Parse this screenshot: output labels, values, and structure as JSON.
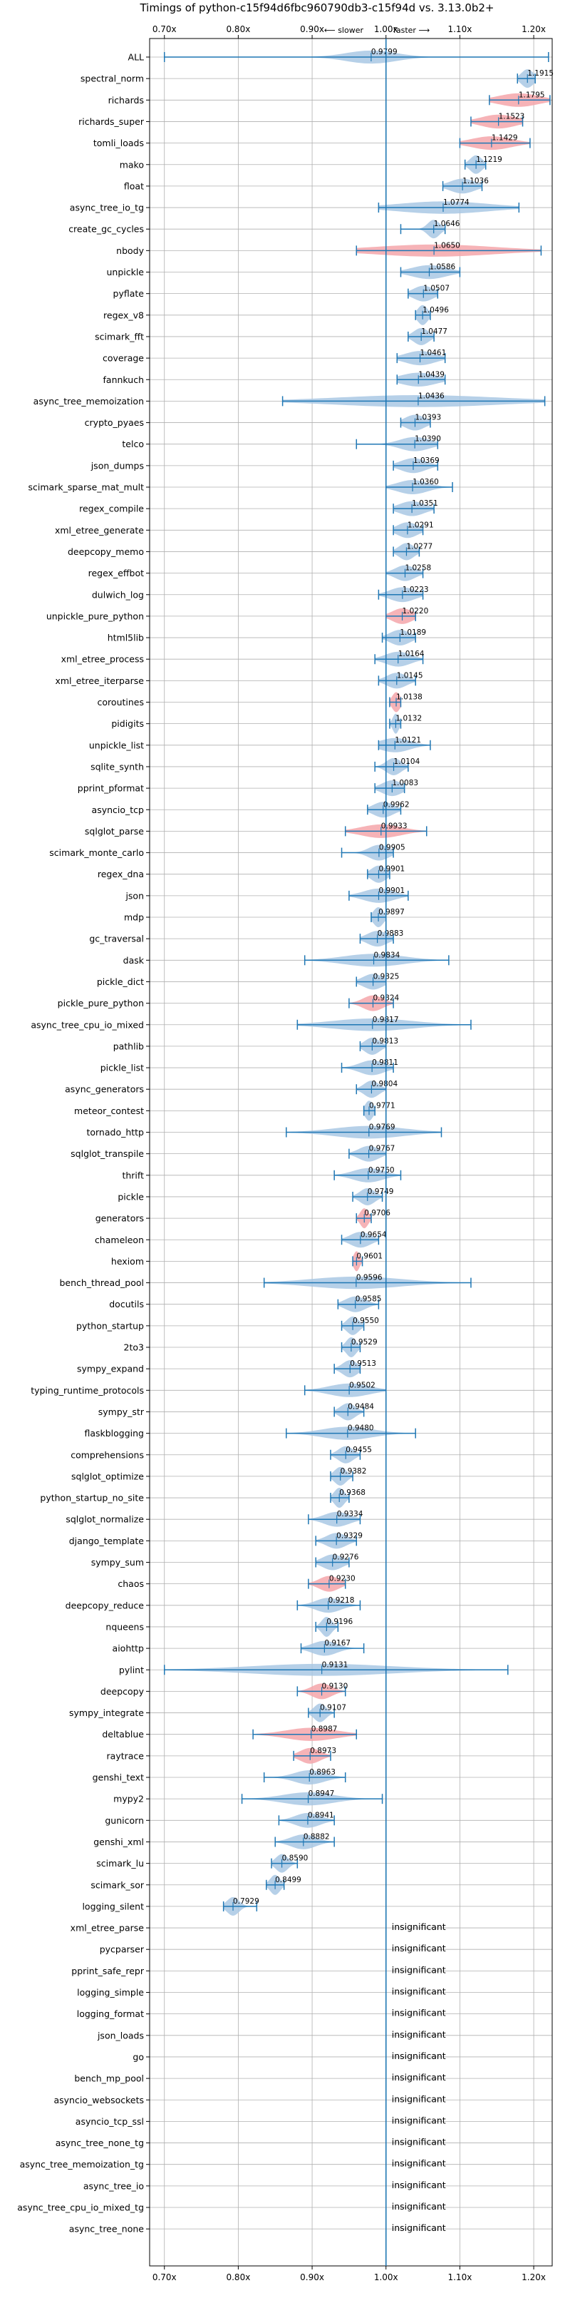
{
  "chart_data": {
    "type": "violin",
    "title": "Timings of python-c15f94d6fbc960790db3-c15f94d vs. 3.13.0b2+",
    "annotation_slower": "⟵ slower",
    "annotation_faster": "faster ⟶",
    "xlim": [
      0.68,
      1.225
    ],
    "xticks": [
      "0.70x",
      "0.80x",
      "0.90x",
      "1.00x",
      "1.10x",
      "1.20x"
    ],
    "xtick_values": [
      0.7,
      0.8,
      0.9,
      1.0,
      1.1,
      1.2
    ],
    "reference_line": 1.0,
    "grid": true,
    "insignificant_label": "insignificant",
    "colors": {
      "faster": "#a9c8e4",
      "slower": "#f5a6aa",
      "whisker": "#1f77b4",
      "ref_line": "#1f77b4",
      "grid": "#b0b0b0"
    },
    "benchmarks": [
      {
        "name": "ALL",
        "value": 0.9799,
        "label": "0.9799",
        "lo": 0.7,
        "hi": 1.22,
        "width": 0.05,
        "slower": false
      },
      {
        "name": "spectral_norm",
        "value": 1.1915,
        "label": "1.1915",
        "lo": 1.178,
        "hi": 1.202,
        "width": 0.012,
        "slower": false
      },
      {
        "name": "richards",
        "value": 1.1795,
        "label": "1.1795",
        "lo": 1.14,
        "hi": 1.222,
        "width": 0.04,
        "slower": true
      },
      {
        "name": "richards_super",
        "value": 1.1523,
        "label": "1.1523",
        "lo": 1.115,
        "hi": 1.185,
        "width": 0.035,
        "slower": true
      },
      {
        "name": "tomli_loads",
        "value": 1.1429,
        "label": "1.1429",
        "lo": 1.1,
        "hi": 1.195,
        "width": 0.04,
        "slower": true
      },
      {
        "name": "mako",
        "value": 1.1219,
        "label": "1.1219",
        "lo": 1.107,
        "hi": 1.135,
        "width": 0.012,
        "slower": false
      },
      {
        "name": "float",
        "value": 1.1036,
        "label": "1.1036",
        "lo": 1.077,
        "hi": 1.13,
        "width": 0.025,
        "slower": false
      },
      {
        "name": "async_tree_io_tg",
        "value": 1.0774,
        "label": "1.0774",
        "lo": 0.99,
        "hi": 1.18,
        "width": 0.09,
        "slower": false
      },
      {
        "name": "create_gc_cycles",
        "value": 1.0646,
        "label": "1.0646",
        "lo": 1.02,
        "hi": 1.08,
        "width": 0.012,
        "slower": false
      },
      {
        "name": "nbody",
        "value": 1.065,
        "label": "1.0650",
        "lo": 0.96,
        "hi": 1.21,
        "width": 0.12,
        "slower": true
      },
      {
        "name": "unpickle",
        "value": 1.0586,
        "label": "1.0586",
        "lo": 1.02,
        "hi": 1.1,
        "width": 0.035,
        "slower": false
      },
      {
        "name": "pyflate",
        "value": 1.0507,
        "label": "1.0507",
        "lo": 1.03,
        "hi": 1.07,
        "width": 0.02,
        "slower": false
      },
      {
        "name": "regex_v8",
        "value": 1.0496,
        "label": "1.0496",
        "lo": 1.04,
        "hi": 1.06,
        "width": 0.01,
        "slower": false
      },
      {
        "name": "scimark_fft",
        "value": 1.0477,
        "label": "1.0477",
        "lo": 1.03,
        "hi": 1.065,
        "width": 0.015,
        "slower": false
      },
      {
        "name": "coverage",
        "value": 1.0461,
        "label": "1.0461",
        "lo": 1.015,
        "hi": 1.08,
        "width": 0.03,
        "slower": false
      },
      {
        "name": "fannkuch",
        "value": 1.0439,
        "label": "1.0439",
        "lo": 1.015,
        "hi": 1.08,
        "width": 0.035,
        "slower": false
      },
      {
        "name": "async_tree_memoization",
        "value": 1.0436,
        "label": "1.0436",
        "lo": 0.86,
        "hi": 1.215,
        "width": 0.16,
        "slower": false
      },
      {
        "name": "crypto_pyaes",
        "value": 1.0393,
        "label": "1.0393",
        "lo": 1.02,
        "hi": 1.06,
        "width": 0.02,
        "slower": false
      },
      {
        "name": "telco",
        "value": 1.039,
        "label": "1.0390",
        "lo": 0.96,
        "hi": 1.07,
        "width": 0.03,
        "slower": false
      },
      {
        "name": "json_dumps",
        "value": 1.0369,
        "label": "1.0369",
        "lo": 1.01,
        "hi": 1.07,
        "width": 0.025,
        "slower": false
      },
      {
        "name": "scimark_sparse_mat_mult",
        "value": 1.036,
        "label": "1.0360",
        "lo": 1.0,
        "hi": 1.09,
        "width": 0.03,
        "slower": false
      },
      {
        "name": "regex_compile",
        "value": 1.0351,
        "label": "1.0351",
        "lo": 1.01,
        "hi": 1.065,
        "width": 0.025,
        "slower": false
      },
      {
        "name": "xml_etree_generate",
        "value": 1.0291,
        "label": "1.0291",
        "lo": 1.01,
        "hi": 1.05,
        "width": 0.02,
        "slower": false
      },
      {
        "name": "deepcopy_memo",
        "value": 1.0277,
        "label": "1.0277",
        "lo": 1.01,
        "hi": 1.045,
        "width": 0.015,
        "slower": false
      },
      {
        "name": "regex_effbot",
        "value": 1.0258,
        "label": "1.0258",
        "lo": 1.0,
        "hi": 1.05,
        "width": 0.02,
        "slower": false
      },
      {
        "name": "dulwich_log",
        "value": 1.0223,
        "label": "1.0223",
        "lo": 0.99,
        "hi": 1.05,
        "width": 0.025,
        "slower": false
      },
      {
        "name": "unpickle_pure_python",
        "value": 1.022,
        "label": "1.0220",
        "lo": 1.0,
        "hi": 1.04,
        "width": 0.02,
        "slower": true
      },
      {
        "name": "html5lib",
        "value": 1.0189,
        "label": "1.0189",
        "lo": 0.995,
        "hi": 1.04,
        "width": 0.02,
        "slower": false
      },
      {
        "name": "xml_etree_process",
        "value": 1.0164,
        "label": "1.0164",
        "lo": 0.985,
        "hi": 1.05,
        "width": 0.025,
        "slower": false
      },
      {
        "name": "xml_etree_iterparse",
        "value": 1.0145,
        "label": "1.0145",
        "lo": 0.99,
        "hi": 1.04,
        "width": 0.02,
        "slower": false
      },
      {
        "name": "coroutines",
        "value": 1.0138,
        "label": "1.0138",
        "lo": 1.005,
        "hi": 1.02,
        "width": 0.008,
        "slower": true
      },
      {
        "name": "pidigits",
        "value": 1.0132,
        "label": "1.0132",
        "lo": 1.005,
        "hi": 1.02,
        "width": 0.006,
        "slower": false
      },
      {
        "name": "unpickle_list",
        "value": 1.0121,
        "label": "1.0121",
        "lo": 0.99,
        "hi": 1.06,
        "width": 0.03,
        "slower": false
      },
      {
        "name": "sqlite_synth",
        "value": 1.0104,
        "label": "1.0104",
        "lo": 0.985,
        "hi": 1.03,
        "width": 0.015,
        "slower": false
      },
      {
        "name": "pprint_pformat",
        "value": 1.0083,
        "label": "1.0083",
        "lo": 0.985,
        "hi": 1.025,
        "width": 0.02,
        "slower": false
      },
      {
        "name": "asyncio_tcp",
        "value": 0.9962,
        "label": "0.9962",
        "lo": 0.975,
        "hi": 1.02,
        "width": 0.02,
        "slower": false
      },
      {
        "name": "sqlglot_parse",
        "value": 0.9933,
        "label": "0.9933",
        "lo": 0.945,
        "hi": 1.055,
        "width": 0.04,
        "slower": true
      },
      {
        "name": "scimark_monte_carlo",
        "value": 0.9905,
        "label": "0.9905",
        "lo": 0.94,
        "hi": 1.01,
        "width": 0.02,
        "slower": false
      },
      {
        "name": "regex_dna",
        "value": 0.9901,
        "label": "0.9901",
        "lo": 0.975,
        "hi": 1.005,
        "width": 0.015,
        "slower": false
      },
      {
        "name": "json",
        "value": 0.9901,
        "label": "0.9901",
        "lo": 0.95,
        "hi": 1.03,
        "width": 0.03,
        "slower": false
      },
      {
        "name": "mdp",
        "value": 0.9897,
        "label": "0.9897",
        "lo": 0.98,
        "hi": 1.0,
        "width": 0.01,
        "slower": false
      },
      {
        "name": "gc_traversal",
        "value": 0.9883,
        "label": "0.9883",
        "lo": 0.965,
        "hi": 1.01,
        "width": 0.02,
        "slower": false
      },
      {
        "name": "dask",
        "value": 0.9834,
        "label": "0.9834",
        "lo": 0.89,
        "hi": 1.085,
        "width": 0.06,
        "slower": false
      },
      {
        "name": "pickle_dict",
        "value": 0.9825,
        "label": "0.9825",
        "lo": 0.96,
        "hi": 1.0,
        "width": 0.02,
        "slower": false
      },
      {
        "name": "pickle_pure_python",
        "value": 0.9824,
        "label": "0.9824",
        "lo": 0.95,
        "hi": 1.01,
        "width": 0.02,
        "slower": true
      },
      {
        "name": "async_tree_cpu_io_mixed",
        "value": 0.9817,
        "label": "0.9817",
        "lo": 0.88,
        "hi": 1.115,
        "width": 0.08,
        "slower": false
      },
      {
        "name": "pathlib",
        "value": 0.9813,
        "label": "0.9813",
        "lo": 0.965,
        "hi": 1.0,
        "width": 0.015,
        "slower": false
      },
      {
        "name": "pickle_list",
        "value": 0.9811,
        "label": "0.9811",
        "lo": 0.94,
        "hi": 1.01,
        "width": 0.025,
        "slower": false
      },
      {
        "name": "async_generators",
        "value": 0.9804,
        "label": "0.9804",
        "lo": 0.96,
        "hi": 1.0,
        "width": 0.015,
        "slower": false
      },
      {
        "name": "meteor_contest",
        "value": 0.9771,
        "label": "0.9771",
        "lo": 0.97,
        "hi": 0.985,
        "width": 0.008,
        "slower": false
      },
      {
        "name": "tornado_http",
        "value": 0.9769,
        "label": "0.9769",
        "lo": 0.865,
        "hi": 1.075,
        "width": 0.07,
        "slower": false
      },
      {
        "name": "sqlglot_transpile",
        "value": 0.9767,
        "label": "0.9767",
        "lo": 0.95,
        "hi": 1.0,
        "width": 0.02,
        "slower": false
      },
      {
        "name": "thrift",
        "value": 0.976,
        "label": "0.9760",
        "lo": 0.93,
        "hi": 1.02,
        "width": 0.03,
        "slower": false
      },
      {
        "name": "pickle",
        "value": 0.9749,
        "label": "0.9749",
        "lo": 0.955,
        "hi": 0.995,
        "width": 0.015,
        "slower": false
      },
      {
        "name": "generators",
        "value": 0.9706,
        "label": "0.9706",
        "lo": 0.96,
        "hi": 0.98,
        "width": 0.008,
        "slower": true
      },
      {
        "name": "chameleon",
        "value": 0.9654,
        "label": "0.9654",
        "lo": 0.94,
        "hi": 0.99,
        "width": 0.02,
        "slower": false
      },
      {
        "name": "hexiom",
        "value": 0.9601,
        "label": "0.9601",
        "lo": 0.955,
        "hi": 0.968,
        "width": 0.006,
        "slower": true
      },
      {
        "name": "bench_thread_pool",
        "value": 0.9596,
        "label": "0.9596",
        "lo": 0.835,
        "hi": 1.115,
        "width": 0.09,
        "slower": false
      },
      {
        "name": "docutils",
        "value": 0.9585,
        "label": "0.9585",
        "lo": 0.935,
        "hi": 0.99,
        "width": 0.02,
        "slower": false
      },
      {
        "name": "python_startup",
        "value": 0.955,
        "label": "0.9550",
        "lo": 0.94,
        "hi": 0.97,
        "width": 0.012,
        "slower": false
      },
      {
        "name": "2to3",
        "value": 0.9529,
        "label": "0.9529",
        "lo": 0.94,
        "hi": 0.965,
        "width": 0.01,
        "slower": false
      },
      {
        "name": "sympy_expand",
        "value": 0.9513,
        "label": "0.9513",
        "lo": 0.93,
        "hi": 0.965,
        "width": 0.015,
        "slower": false
      },
      {
        "name": "typing_runtime_protocols",
        "value": 0.9502,
        "label": "0.9502",
        "lo": 0.89,
        "hi": 1.0,
        "width": 0.04,
        "slower": false
      },
      {
        "name": "sympy_str",
        "value": 0.9484,
        "label": "0.9484",
        "lo": 0.93,
        "hi": 0.97,
        "width": 0.015,
        "slower": false
      },
      {
        "name": "flaskblogging",
        "value": 0.948,
        "label": "0.9480",
        "lo": 0.865,
        "hi": 1.04,
        "width": 0.05,
        "slower": false
      },
      {
        "name": "comprehensions",
        "value": 0.9455,
        "label": "0.9455",
        "lo": 0.925,
        "hi": 0.965,
        "width": 0.015,
        "slower": false
      },
      {
        "name": "sqlglot_optimize",
        "value": 0.9382,
        "label": "0.9382",
        "lo": 0.925,
        "hi": 0.955,
        "width": 0.012,
        "slower": false
      },
      {
        "name": "python_startup_no_site",
        "value": 0.9368,
        "label": "0.9368",
        "lo": 0.925,
        "hi": 0.95,
        "width": 0.01,
        "slower": false
      },
      {
        "name": "sqlglot_normalize",
        "value": 0.9334,
        "label": "0.9334",
        "lo": 0.895,
        "hi": 0.965,
        "width": 0.025,
        "slower": false
      },
      {
        "name": "django_template",
        "value": 0.9329,
        "label": "0.9329",
        "lo": 0.905,
        "hi": 0.96,
        "width": 0.02,
        "slower": false
      },
      {
        "name": "sympy_sum",
        "value": 0.9276,
        "label": "0.9276",
        "lo": 0.905,
        "hi": 0.95,
        "width": 0.02,
        "slower": false
      },
      {
        "name": "chaos",
        "value": 0.923,
        "label": "0.9230",
        "lo": 0.895,
        "hi": 0.945,
        "width": 0.02,
        "slower": true
      },
      {
        "name": "deepcopy_reduce",
        "value": 0.9218,
        "label": "0.9218",
        "lo": 0.88,
        "hi": 0.965,
        "width": 0.025,
        "slower": false
      },
      {
        "name": "nqueens",
        "value": 0.9196,
        "label": "0.9196",
        "lo": 0.905,
        "hi": 0.935,
        "width": 0.01,
        "slower": false
      },
      {
        "name": "aiohttp",
        "value": 0.9167,
        "label": "0.9167",
        "lo": 0.885,
        "hi": 0.97,
        "width": 0.025,
        "slower": false
      },
      {
        "name": "pylint",
        "value": 0.9131,
        "label": "0.9131",
        "lo": 0.7,
        "hi": 1.165,
        "width": 0.14,
        "slower": false
      },
      {
        "name": "deepcopy",
        "value": 0.913,
        "label": "0.9130",
        "lo": 0.88,
        "hi": 0.945,
        "width": 0.02,
        "slower": true
      },
      {
        "name": "sympy_integrate",
        "value": 0.9107,
        "label": "0.9107",
        "lo": 0.895,
        "hi": 0.93,
        "width": 0.012,
        "slower": false
      },
      {
        "name": "deltablue",
        "value": 0.8987,
        "label": "0.8987",
        "lo": 0.82,
        "hi": 0.96,
        "width": 0.05,
        "slower": true
      },
      {
        "name": "raytrace",
        "value": 0.8973,
        "label": "0.8973",
        "lo": 0.875,
        "hi": 0.925,
        "width": 0.02,
        "slower": true
      },
      {
        "name": "genshi_text",
        "value": 0.8963,
        "label": "0.8963",
        "lo": 0.835,
        "hi": 0.945,
        "width": 0.03,
        "slower": false
      },
      {
        "name": "mypy2",
        "value": 0.8947,
        "label": "0.8947",
        "lo": 0.805,
        "hi": 0.995,
        "width": 0.05,
        "slower": false
      },
      {
        "name": "gunicorn",
        "value": 0.8941,
        "label": "0.8941",
        "lo": 0.855,
        "hi": 0.93,
        "width": 0.025,
        "slower": false
      },
      {
        "name": "genshi_xml",
        "value": 0.8882,
        "label": "0.8882",
        "lo": 0.85,
        "hi": 0.93,
        "width": 0.025,
        "slower": false
      },
      {
        "name": "scimark_lu",
        "value": 0.859,
        "label": "0.8590",
        "lo": 0.845,
        "hi": 0.88,
        "width": 0.012,
        "slower": false
      },
      {
        "name": "scimark_sor",
        "value": 0.8499,
        "label": "0.8499",
        "lo": 0.838,
        "hi": 0.862,
        "width": 0.01,
        "slower": false
      },
      {
        "name": "logging_silent",
        "value": 0.7929,
        "label": "0.7929",
        "lo": 0.78,
        "hi": 0.825,
        "width": 0.012,
        "slower": false
      },
      {
        "name": "xml_etree_parse",
        "insignificant": true
      },
      {
        "name": "pycparser",
        "insignificant": true
      },
      {
        "name": "pprint_safe_repr",
        "insignificant": true
      },
      {
        "name": "logging_simple",
        "insignificant": true
      },
      {
        "name": "logging_format",
        "insignificant": true
      },
      {
        "name": "json_loads",
        "insignificant": true
      },
      {
        "name": "go",
        "insignificant": true
      },
      {
        "name": "bench_mp_pool",
        "insignificant": true
      },
      {
        "name": "asyncio_websockets",
        "insignificant": true
      },
      {
        "name": "asyncio_tcp_ssl",
        "insignificant": true
      },
      {
        "name": "async_tree_none_tg",
        "insignificant": true
      },
      {
        "name": "async_tree_memoization_tg",
        "insignificant": true
      },
      {
        "name": "async_tree_io",
        "insignificant": true
      },
      {
        "name": "async_tree_cpu_io_mixed_tg",
        "insignificant": true
      },
      {
        "name": "async_tree_none",
        "insignificant": true
      }
    ]
  }
}
